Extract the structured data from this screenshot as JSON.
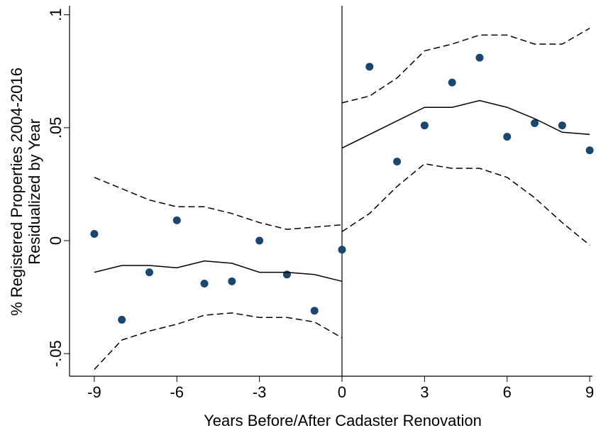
{
  "chart_data": {
    "type": "scatter",
    "xlabel": "Years Before/After Cadaster Renovation",
    "ylabel": [
      "% Registered Properties 2004-2016",
      "Residualized by Year"
    ],
    "xlim": [
      -9.9,
      9.1
    ],
    "ylim": [
      -0.06,
      0.104
    ],
    "xticks": [
      -9,
      -6,
      -3,
      0,
      3,
      6,
      9
    ],
    "yticks": [
      {
        "value": -0.05,
        "label": "-.05"
      },
      {
        "value": 0,
        "label": "0"
      },
      {
        "value": 0.05,
        "label": ".05"
      },
      {
        "value": 0.1,
        "label": ".1"
      }
    ],
    "vline": 0,
    "series": [
      {
        "style": "dots",
        "color": "#1a476f",
        "x": [
          -9,
          -8,
          -7,
          -6,
          -5,
          -4,
          -3,
          -2,
          -1,
          0,
          1,
          2,
          3,
          4,
          5,
          6,
          7,
          8,
          9
        ],
        "values": [
          0.003,
          -0.035,
          -0.014,
          0.009,
          -0.019,
          -0.018,
          0.0,
          -0.015,
          -0.031,
          -0.004,
          0.077,
          0.035,
          0.051,
          0.07,
          0.081,
          0.046,
          0.052,
          0.051,
          0.04
        ]
      },
      {
        "style": "solid",
        "color": "#000000",
        "x": [
          -9,
          -8,
          -7,
          -6,
          -5,
          -4,
          -3,
          -2,
          -1,
          0
        ],
        "values": [
          -0.014,
          -0.011,
          -0.011,
          -0.012,
          -0.009,
          -0.01,
          -0.014,
          -0.014,
          -0.015,
          -0.018
        ]
      },
      {
        "style": "dashed",
        "color": "#000000",
        "x": [
          -9,
          -8,
          -7,
          -6,
          -5,
          -4,
          -3,
          -2,
          -1,
          0
        ],
        "values": [
          0.028,
          0.023,
          0.018,
          0.015,
          0.015,
          0.012,
          0.008,
          0.005,
          0.006,
          0.007
        ]
      },
      {
        "style": "dashed",
        "color": "#000000",
        "x": [
          -9,
          -8,
          -7,
          -6,
          -5,
          -4,
          -3,
          -2,
          -1,
          0
        ],
        "values": [
          -0.057,
          -0.044,
          -0.04,
          -0.037,
          -0.033,
          -0.032,
          -0.034,
          -0.034,
          -0.036,
          -0.043
        ]
      },
      {
        "style": "solid",
        "color": "#000000",
        "x": [
          0,
          1,
          2,
          3,
          4,
          5,
          6,
          7,
          8,
          9
        ],
        "values": [
          0.041,
          0.047,
          0.053,
          0.059,
          0.059,
          0.062,
          0.059,
          0.054,
          0.048,
          0.047
        ]
      },
      {
        "style": "dashed",
        "color": "#000000",
        "x": [
          0,
          1,
          2,
          3,
          4,
          5,
          6,
          7,
          8,
          9
        ],
        "values": [
          0.061,
          0.064,
          0.072,
          0.084,
          0.087,
          0.091,
          0.091,
          0.087,
          0.087,
          0.094
        ]
      },
      {
        "style": "dashed",
        "color": "#000000",
        "x": [
          0,
          1,
          2,
          3,
          4,
          5,
          6,
          7,
          8,
          9
        ],
        "values": [
          0.004,
          0.012,
          0.024,
          0.034,
          0.032,
          0.032,
          0.028,
          0.019,
          0.008,
          -0.002
        ]
      }
    ]
  }
}
